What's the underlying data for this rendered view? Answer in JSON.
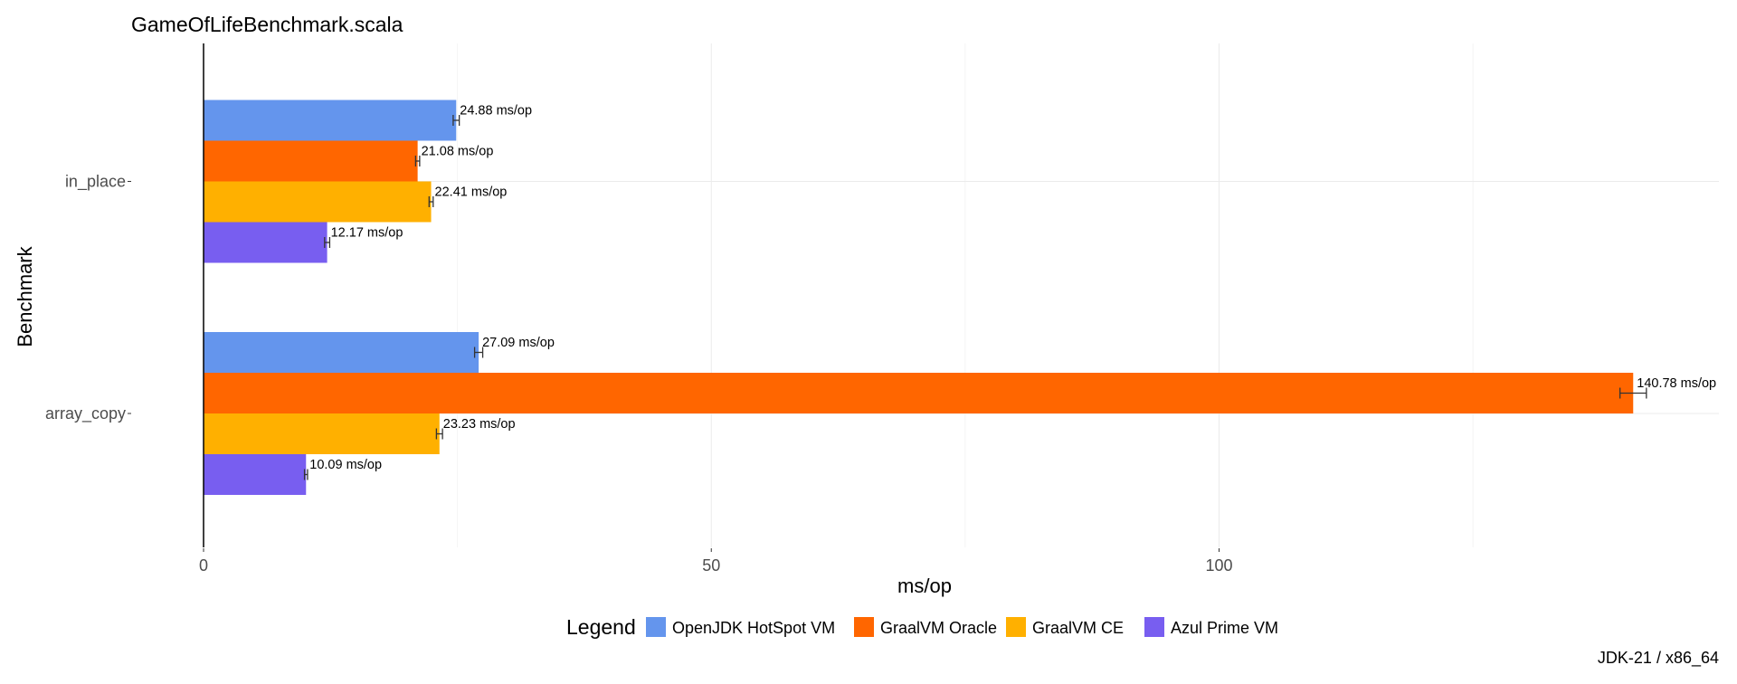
{
  "chart_data": {
    "type": "bar",
    "orientation": "horizontal",
    "title": "GameOfLifeBenchmark.scala",
    "xlabel": "ms/op",
    "ylabel": "Benchmark",
    "caption": "JDK-21 / x86_64",
    "legend_title": "Legend",
    "legend_position": "bottom",
    "grid": true,
    "xlim": [
      0,
      150
    ],
    "xticks": [
      0,
      50,
      100
    ],
    "categories": [
      "in_place",
      "array_copy"
    ],
    "series": [
      {
        "name": "OpenJDK HotSpot VM",
        "color": "#6495ED",
        "values": [
          24.88,
          27.09
        ],
        "labels": [
          "24.88 ms/op",
          "27.09 ms/op"
        ],
        "errors": [
          0.3,
          0.4
        ]
      },
      {
        "name": "GraalVM Oracle",
        "color": "#FF6600",
        "values": [
          21.08,
          140.78
        ],
        "labels": [
          "21.08 ms/op",
          "140.78 ms/op"
        ],
        "errors": [
          0.2,
          1.3
        ]
      },
      {
        "name": "GraalVM CE",
        "color": "#FFB000",
        "values": [
          22.41,
          23.23
        ],
        "labels": [
          "22.41 ms/op",
          "23.23 ms/op"
        ],
        "errors": [
          0.2,
          0.3
        ]
      },
      {
        "name": "Azul Prime VM",
        "color": "#785EF0",
        "values": [
          12.17,
          10.09
        ],
        "labels": [
          "12.17 ms/op",
          "10.09 ms/op"
        ],
        "errors": [
          0.25,
          0.15
        ]
      }
    ]
  }
}
